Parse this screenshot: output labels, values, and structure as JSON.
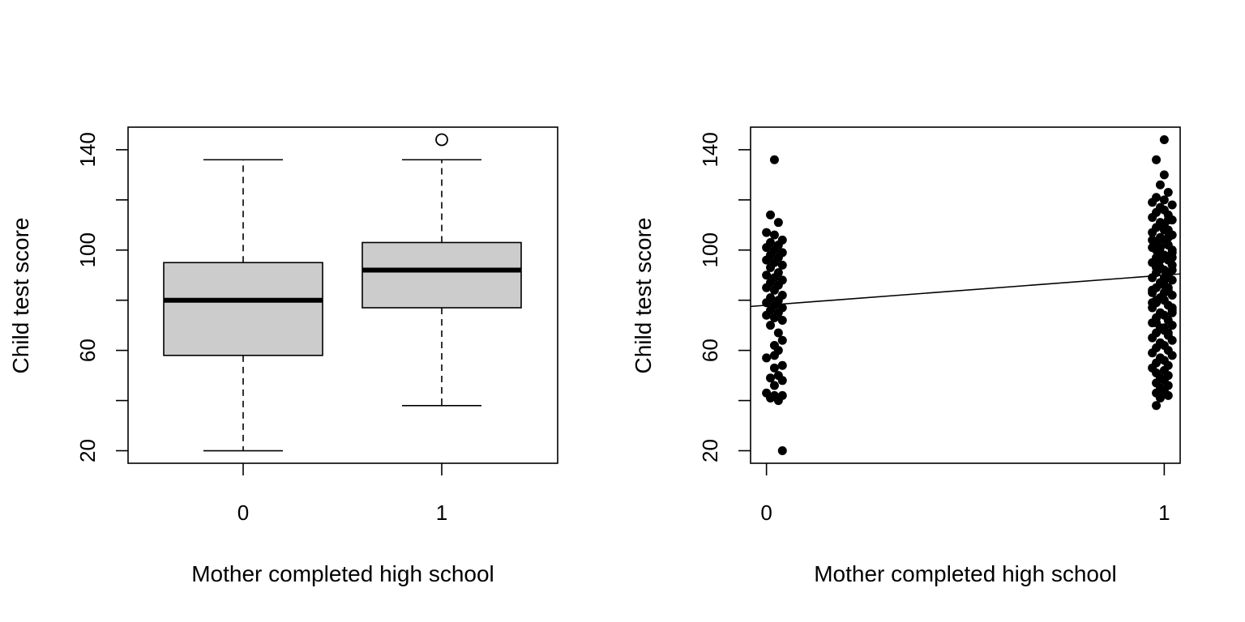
{
  "chart_data": [
    {
      "type": "box",
      "xlabel": "Mother completed high school",
      "ylabel": "Child test score",
      "categories": [
        "0",
        "1"
      ],
      "yticks": [
        "20",
        "60",
        "100",
        "140"
      ],
      "ylim": [
        15,
        149
      ],
      "fill_color": "#cccccc",
      "boxes": [
        {
          "category": "0",
          "whisker_low": 20,
          "q1": 58,
          "median": 80,
          "q3": 95,
          "whisker_high": 136,
          "outliers": []
        },
        {
          "category": "1",
          "whisker_low": 38,
          "q1": 77,
          "median": 92,
          "q3": 103,
          "whisker_high": 136,
          "outliers": [
            144
          ]
        }
      ]
    },
    {
      "type": "scatter",
      "xlabel": "Mother completed high school",
      "ylabel": "Child test score",
      "xticks": [
        "0",
        "1"
      ],
      "yticks": [
        "20",
        "60",
        "100",
        "140"
      ],
      "xlim": [
        -0.04,
        1.04
      ],
      "ylim": [
        15,
        149
      ],
      "jitter": "x jitter approx. ±0.04 around 0 and 1",
      "regression_line": {
        "intercept": 78,
        "slope": 12
      },
      "points": [
        [
          0.02,
          136
        ],
        [
          0.04,
          20
        ],
        [
          0.01,
          114
        ],
        [
          0.03,
          111
        ],
        [
          0.0,
          107
        ],
        [
          0.02,
          106
        ],
        [
          0.04,
          104
        ],
        [
          0.01,
          103
        ],
        [
          0.03,
          102
        ],
        [
          0.0,
          101
        ],
        [
          0.02,
          100
        ],
        [
          0.04,
          99
        ],
        [
          0.01,
          98
        ],
        [
          0.03,
          97
        ],
        [
          0.0,
          96
        ],
        [
          0.02,
          95
        ],
        [
          0.04,
          94
        ],
        [
          0.01,
          93
        ],
        [
          0.03,
          91
        ],
        [
          0.0,
          90
        ],
        [
          0.02,
          89
        ],
        [
          0.04,
          88
        ],
        [
          0.01,
          87
        ],
        [
          0.03,
          86
        ],
        [
          0.0,
          85
        ],
        [
          0.02,
          84
        ],
        [
          0.04,
          82
        ],
        [
          0.01,
          81
        ],
        [
          0.03,
          80
        ],
        [
          0.0,
          79
        ],
        [
          0.02,
          78
        ],
        [
          0.04,
          77
        ],
        [
          0.01,
          76
        ],
        [
          0.03,
          75
        ],
        [
          0.0,
          74
        ],
        [
          0.02,
          73
        ],
        [
          0.04,
          72
        ],
        [
          0.01,
          70
        ],
        [
          0.03,
          67
        ],
        [
          0.04,
          64
        ],
        [
          0.02,
          62
        ],
        [
          0.03,
          60
        ],
        [
          0.02,
          58
        ],
        [
          0.0,
          57
        ],
        [
          0.04,
          54
        ],
        [
          0.02,
          53
        ],
        [
          0.03,
          50
        ],
        [
          0.01,
          49
        ],
        [
          0.04,
          48
        ],
        [
          0.02,
          46
        ],
        [
          0.0,
          43
        ],
        [
          0.02,
          42
        ],
        [
          0.04,
          42
        ],
        [
          0.01,
          41
        ],
        [
          0.03,
          40
        ],
        [
          1.0,
          144
        ],
        [
          0.98,
          136
        ],
        [
          1.0,
          130
        ],
        [
          0.99,
          126
        ],
        [
          1.01,
          123
        ],
        [
          0.98,
          121
        ],
        [
          1.0,
          120
        ],
        [
          0.97,
          119
        ],
        [
          1.02,
          118
        ],
        [
          0.99,
          117
        ],
        [
          1.0,
          116
        ],
        [
          0.98,
          115
        ],
        [
          1.01,
          114
        ],
        [
          0.97,
          113
        ],
        [
          1.02,
          112
        ],
        [
          0.99,
          111
        ],
        [
          1.0,
          110
        ],
        [
          0.98,
          109
        ],
        [
          1.01,
          108
        ],
        [
          0.97,
          107
        ],
        [
          1.02,
          106
        ],
        [
          0.99,
          105
        ],
        [
          1.0,
          104
        ],
        [
          0.98,
          103
        ],
        [
          1.01,
          102
        ],
        [
          0.97,
          101
        ],
        [
          1.02,
          100
        ],
        [
          0.99,
          99
        ],
        [
          1.0,
          98
        ],
        [
          0.98,
          97
        ],
        [
          1.01,
          96
        ],
        [
          0.97,
          95
        ],
        [
          1.02,
          94
        ],
        [
          0.99,
          93
        ],
        [
          1.0,
          92
        ],
        [
          0.98,
          91
        ],
        [
          1.01,
          90
        ],
        [
          0.97,
          89
        ],
        [
          1.02,
          88
        ],
        [
          0.99,
          87
        ],
        [
          1.0,
          86
        ],
        [
          0.98,
          85
        ],
        [
          1.01,
          84
        ],
        [
          0.97,
          83
        ],
        [
          1.02,
          82
        ],
        [
          0.99,
          81
        ],
        [
          1.0,
          80
        ],
        [
          0.98,
          79
        ],
        [
          1.01,
          78
        ],
        [
          0.97,
          77
        ],
        [
          1.02,
          76
        ],
        [
          0.99,
          75
        ],
        [
          1.0,
          74
        ],
        [
          0.98,
          73
        ],
        [
          1.01,
          72
        ],
        [
          0.97,
          71
        ],
        [
          1.02,
          70
        ],
        [
          0.99,
          69
        ],
        [
          1.0,
          68
        ],
        [
          0.98,
          67
        ],
        [
          1.01,
          66
        ],
        [
          0.97,
          65
        ],
        [
          1.02,
          64
        ],
        [
          0.99,
          63
        ],
        [
          1.0,
          62
        ],
        [
          0.98,
          61
        ],
        [
          1.01,
          60
        ],
        [
          0.97,
          59
        ],
        [
          1.02,
          58
        ],
        [
          0.99,
          57
        ],
        [
          1.0,
          56
        ],
        [
          0.98,
          55
        ],
        [
          1.01,
          54
        ],
        [
          0.97,
          53
        ],
        [
          1.0,
          52
        ],
        [
          0.98,
          51
        ],
        [
          1.01,
          50
        ],
        [
          0.99,
          49
        ],
        [
          1.0,
          48
        ],
        [
          0.98,
          47
        ],
        [
          1.01,
          46
        ],
        [
          0.99,
          45
        ],
        [
          1.0,
          44
        ],
        [
          0.98,
          43
        ],
        [
          1.01,
          42
        ],
        [
          0.99,
          41
        ],
        [
          0.98,
          38
        ],
        [
          1.0,
          109
        ],
        [
          1.01,
          105
        ],
        [
          0.99,
          101
        ],
        [
          1.02,
          97
        ],
        [
          0.98,
          93
        ],
        [
          1.0,
          89
        ],
        [
          1.01,
          85
        ],
        [
          0.99,
          81
        ],
        [
          1.02,
          77
        ],
        [
          0.98,
          73
        ],
        [
          1.0,
          69
        ],
        [
          0.97,
          104
        ],
        [
          1.02,
          99
        ],
        [
          0.98,
          95
        ],
        [
          1.01,
          91
        ],
        [
          0.99,
          87
        ],
        [
          1.0,
          83
        ],
        [
          0.97,
          79
        ],
        [
          1.02,
          75
        ],
        [
          0.98,
          71
        ],
        [
          1.01,
          67
        ],
        [
          0.99,
          63
        ],
        [
          1.0,
          108
        ],
        [
          0.98,
          100
        ],
        [
          1.02,
          92
        ],
        [
          0.97,
          84
        ],
        [
          1.01,
          112
        ],
        [
          0.99,
          96
        ],
        [
          1.0,
          88
        ],
        [
          0.98,
          80
        ]
      ]
    }
  ]
}
